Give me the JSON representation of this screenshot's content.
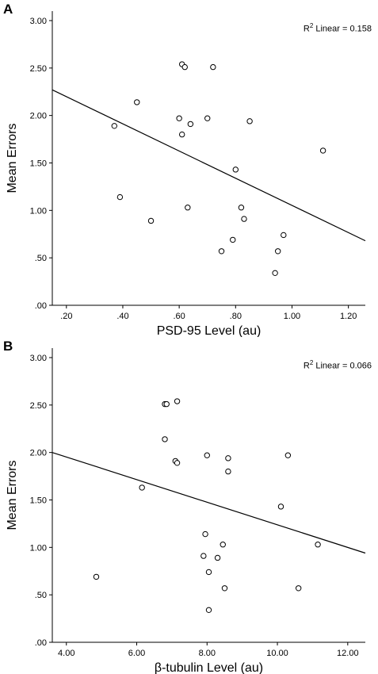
{
  "charts": [
    {
      "panel": "A",
      "chart_data": {
        "type": "scatter",
        "xlabel": "PSD-95 Level (au)",
        "ylabel": "Mean Errors",
        "xlim": [
          0.15,
          1.26
        ],
        "ylim": [
          0.0,
          3.1
        ],
        "xticks": [
          0.2,
          0.4,
          0.6,
          0.8,
          1.0,
          1.2
        ],
        "xtick_labels": [
          ".20",
          ".40",
          ".60",
          ".80",
          "1.00",
          "1.20"
        ],
        "yticks": [
          0.0,
          0.5,
          1.0,
          1.5,
          2.0,
          2.5,
          3.0
        ],
        "ytick_labels": [
          ".00",
          ".50",
          "1.00",
          "1.50",
          "2.00",
          "2.50",
          "3.00"
        ],
        "points": [
          {
            "x": 0.37,
            "y": 1.89
          },
          {
            "x": 0.39,
            "y": 1.14
          },
          {
            "x": 0.45,
            "y": 2.14
          },
          {
            "x": 0.5,
            "y": 0.89
          },
          {
            "x": 0.6,
            "y": 1.97
          },
          {
            "x": 0.61,
            "y": 1.8
          },
          {
            "x": 0.61,
            "y": 2.54
          },
          {
            "x": 0.62,
            "y": 2.51
          },
          {
            "x": 0.63,
            "y": 1.03
          },
          {
            "x": 0.64,
            "y": 1.91
          },
          {
            "x": 0.7,
            "y": 1.97
          },
          {
            "x": 0.72,
            "y": 2.51
          },
          {
            "x": 0.75,
            "y": 0.57
          },
          {
            "x": 0.79,
            "y": 0.69
          },
          {
            "x": 0.8,
            "y": 1.43
          },
          {
            "x": 0.82,
            "y": 1.03
          },
          {
            "x": 0.83,
            "y": 0.91
          },
          {
            "x": 0.85,
            "y": 1.94
          },
          {
            "x": 0.94,
            "y": 0.34
          },
          {
            "x": 0.95,
            "y": 0.57
          },
          {
            "x": 0.97,
            "y": 0.74
          },
          {
            "x": 1.11,
            "y": 1.63
          }
        ],
        "fit_line": {
          "x": [
            0.15,
            1.26
          ],
          "y": [
            2.27,
            0.68
          ]
        },
        "annotation": {
          "prefix": "R",
          "sup": "2",
          "text": " Linear = 0.158"
        }
      }
    },
    {
      "panel": "B",
      "chart_data": {
        "type": "scatter",
        "xlabel": "β-tubulin Level (au)",
        "ylabel": "Mean Errors",
        "xlim": [
          3.6,
          12.5
        ],
        "ylim": [
          0.0,
          3.1
        ],
        "xticks": [
          4,
          6,
          8,
          10,
          12
        ],
        "xtick_labels": [
          "4.00",
          "6.00",
          "8.00",
          "10.00",
          "12.00"
        ],
        "yticks": [
          0.0,
          0.5,
          1.0,
          1.5,
          2.0,
          2.5,
          3.0
        ],
        "ytick_labels": [
          ".00",
          ".50",
          "1.00",
          "1.50",
          "2.00",
          "2.50",
          "3.00"
        ],
        "points": [
          {
            "x": 4.85,
            "y": 0.69
          },
          {
            "x": 6.15,
            "y": 1.63
          },
          {
            "x": 6.8,
            "y": 2.14
          },
          {
            "x": 6.8,
            "y": 2.51
          },
          {
            "x": 6.85,
            "y": 2.51
          },
          {
            "x": 7.1,
            "y": 1.91
          },
          {
            "x": 7.15,
            "y": 1.89
          },
          {
            "x": 7.15,
            "y": 2.54
          },
          {
            "x": 7.9,
            "y": 0.91
          },
          {
            "x": 7.95,
            "y": 1.14
          },
          {
            "x": 8.0,
            "y": 1.97
          },
          {
            "x": 8.05,
            "y": 0.74
          },
          {
            "x": 8.05,
            "y": 0.34
          },
          {
            "x": 8.3,
            "y": 0.89
          },
          {
            "x": 8.45,
            "y": 1.03
          },
          {
            "x": 8.5,
            "y": 0.57
          },
          {
            "x": 8.6,
            "y": 1.8
          },
          {
            "x": 8.6,
            "y": 1.94
          },
          {
            "x": 10.1,
            "y": 1.43
          },
          {
            "x": 10.3,
            "y": 1.97
          },
          {
            "x": 10.6,
            "y": 0.57
          },
          {
            "x": 11.15,
            "y": 1.03
          }
        ],
        "fit_line": {
          "x": [
            3.6,
            12.5
          ],
          "y": [
            2.0,
            0.94
          ]
        },
        "annotation": {
          "prefix": "R",
          "sup": "2",
          "text": " Linear = 0.066"
        }
      }
    }
  ]
}
